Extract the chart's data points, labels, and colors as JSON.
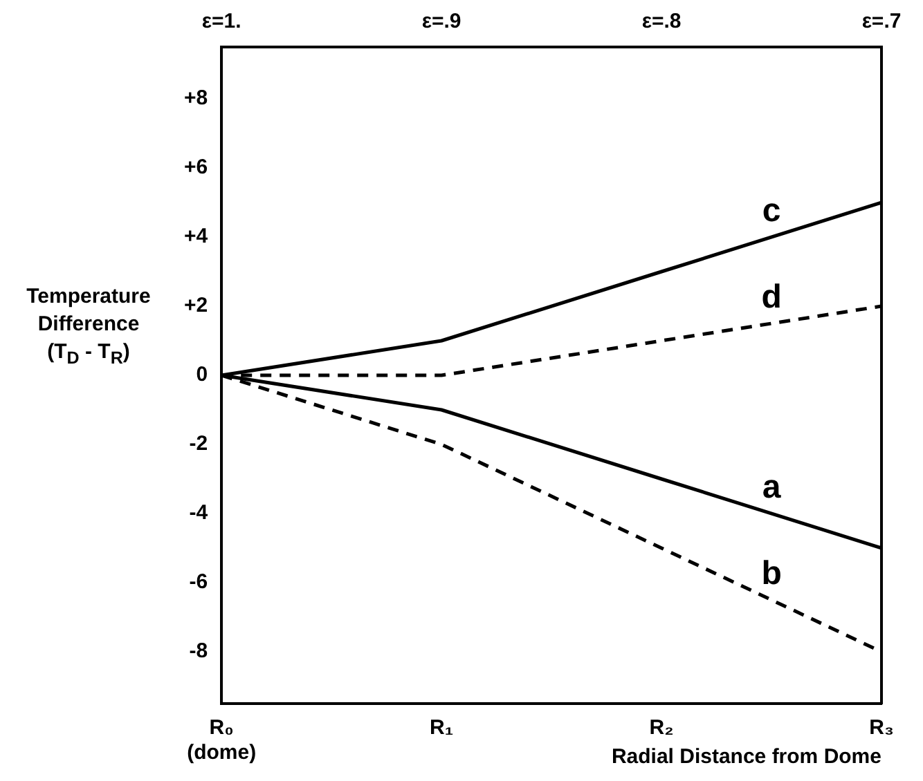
{
  "chart_data": {
    "type": "line",
    "xlabel": "Radial Distance from Dome",
    "ylabel": "Temperature\nDifference\n(T$_{D}$ - T$_{R}$)",
    "categories": [
      "R₀\n(dome)",
      "R₁",
      "R₂",
      "R₃"
    ],
    "ylim": [
      -9.5,
      9.5
    ],
    "yticks": [
      {
        "value": 8,
        "label": "+8"
      },
      {
        "value": 6,
        "label": "+6"
      },
      {
        "value": 4,
        "label": "+4"
      },
      {
        "value": 2,
        "label": "+2"
      },
      0,
      -2,
      -4,
      -6,
      -8
    ],
    "x2lim": [
      1,
      0.7
    ],
    "x2ticks": [
      {
        "value": 1,
        "label": "ε=1."
      },
      {
        "value": 0.9,
        "label": "ε=.9"
      },
      {
        "value": 0.8,
        "label": "ε=.8"
      },
      {
        "value": 0.7,
        "label": "ε=.7"
      }
    ],
    "series": [
      {
        "name": "c",
        "color": "#000000",
        "values": [
          0,
          1,
          3,
          5
        ],
        "line_style": "solid"
      },
      {
        "name": "d",
        "color": "#000000",
        "values": [
          0,
          0,
          1,
          2
        ],
        "line_style": "dashed"
      },
      {
        "name": "a",
        "color": "#000000",
        "values": [
          0,
          -1,
          -3,
          -5
        ],
        "line_style": "solid"
      },
      {
        "name": "b",
        "color": "#000000",
        "values": [
          0,
          -2,
          -5,
          -8
        ],
        "line_style": "dashed"
      }
    ],
    "grid": false,
    "legend": false,
    "marker": "none"
  }
}
